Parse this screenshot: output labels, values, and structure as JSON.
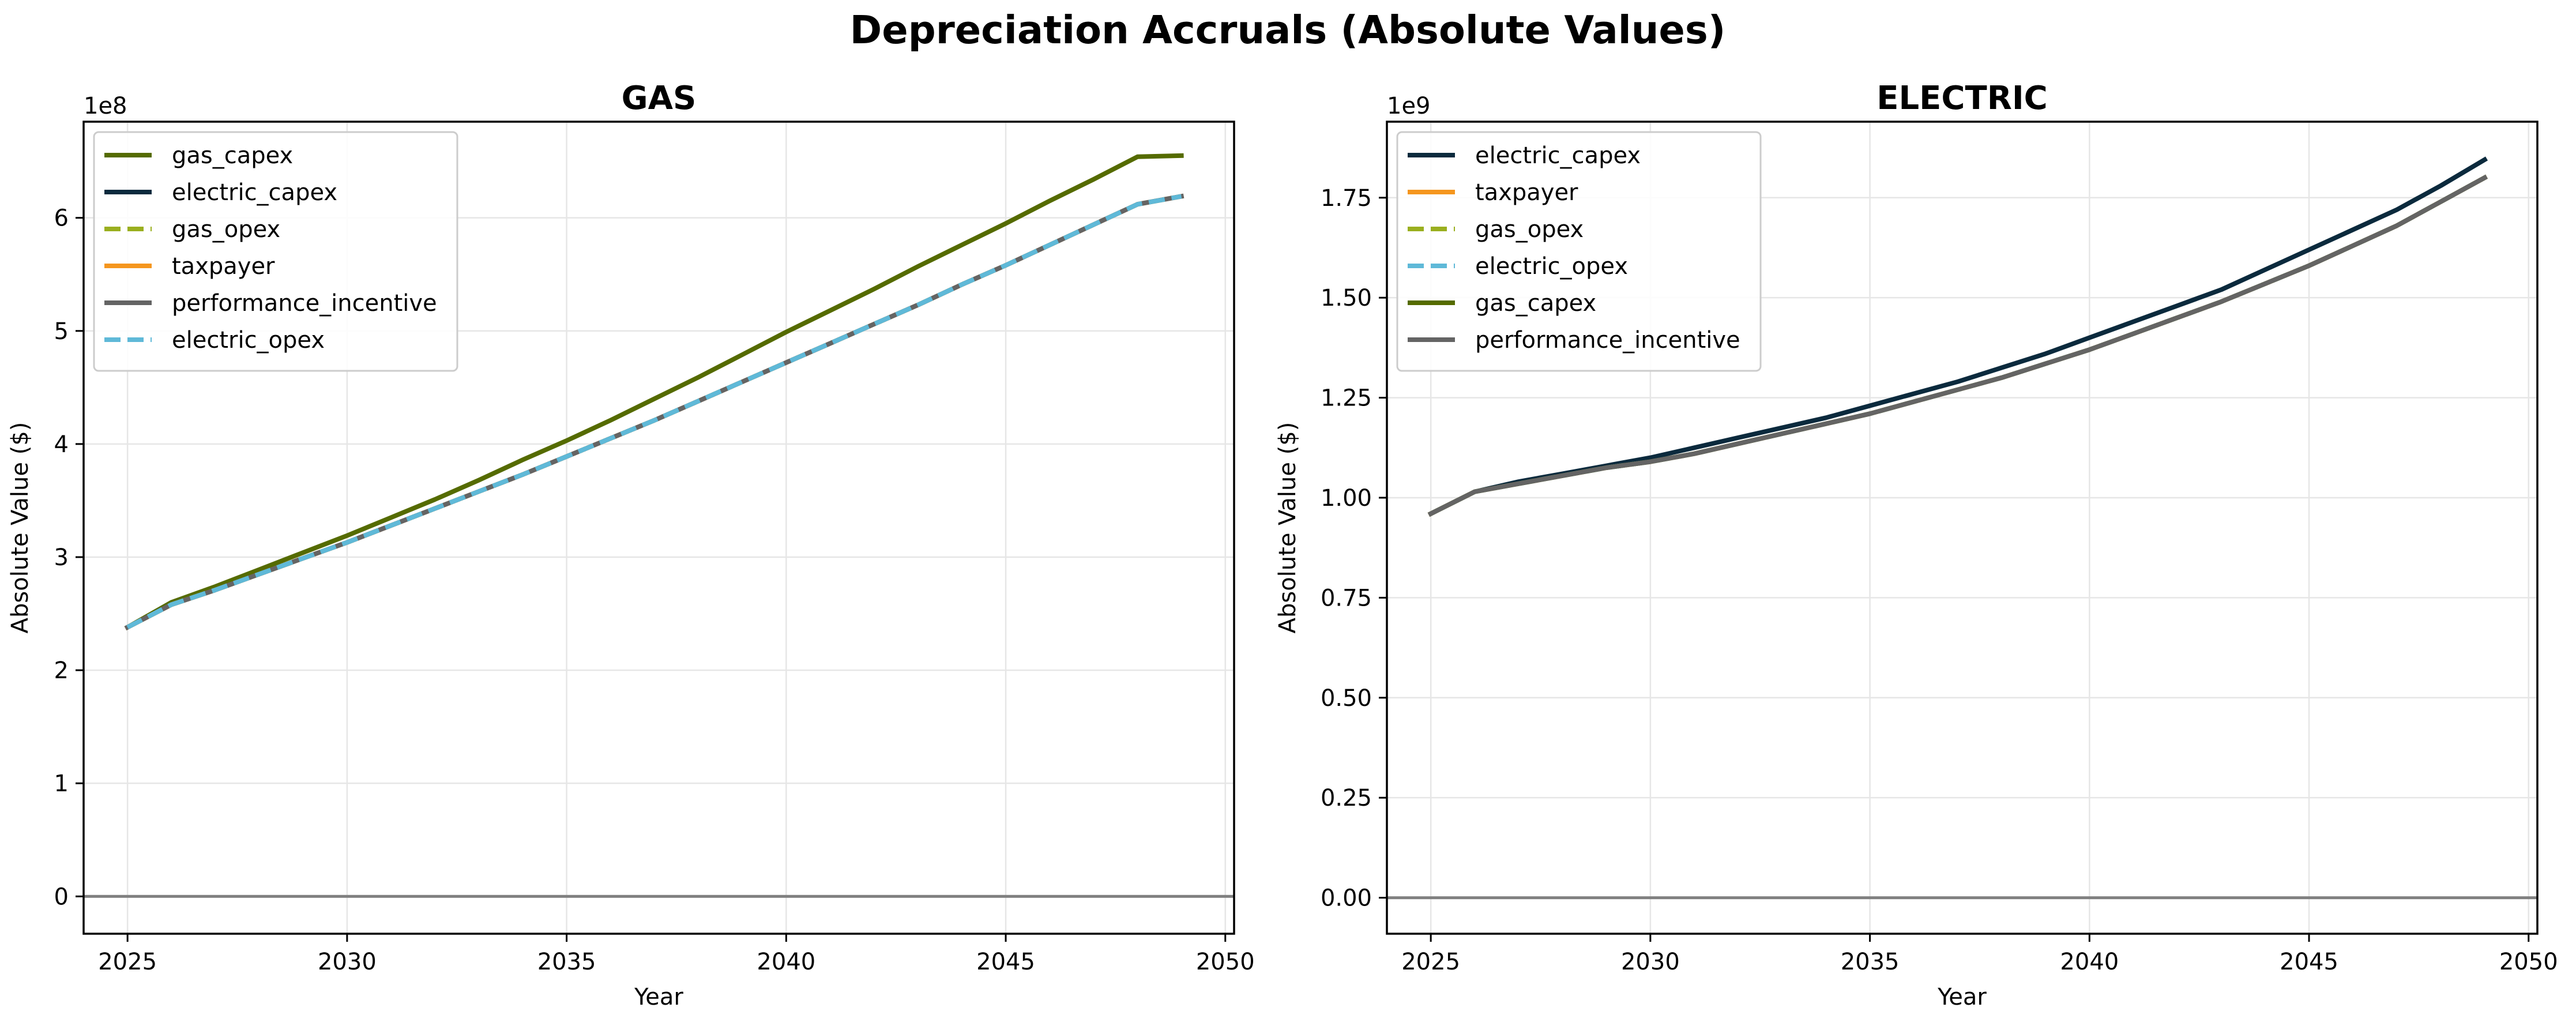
{
  "figure": {
    "title": "Depreciation Accruals (Absolute Values)"
  },
  "colors": {
    "gas_capex": "#556b00",
    "electric_capex": "#0b2a3d",
    "gas_opex": "#9aaf1f",
    "taxpayer": "#f5961e",
    "performance_incentive": "#646464",
    "electric_opex": "#5fb9d8",
    "zero_line": "#808080",
    "grid": "#e6e6e6"
  },
  "chart_data": [
    {
      "type": "line",
      "title": "GAS",
      "xlabel": "Year",
      "ylabel": "Absolute Value ($)",
      "y_multiplier_label": "1e8",
      "y_scale": 100000000,
      "xlim": [
        2024.0,
        2050.2
      ],
      "ylim": [
        -0.33,
        6.85
      ],
      "xticks": [
        2025,
        2030,
        2035,
        2040,
        2045,
        2050
      ],
      "xtick_labels": [
        "2025",
        "2030",
        "2035",
        "2040",
        "2045",
        "2050"
      ],
      "yticks": [
        0,
        1,
        2,
        3,
        4,
        5,
        6
      ],
      "ytick_labels": [
        "0",
        "1",
        "2",
        "3",
        "4",
        "5",
        "6"
      ],
      "grid": true,
      "zero_line": true,
      "legend_position": "upper-left",
      "x": [
        2025,
        2026,
        2027,
        2028,
        2029,
        2030,
        2031,
        2032,
        2033,
        2034,
        2035,
        2036,
        2037,
        2038,
        2039,
        2040,
        2041,
        2042,
        2043,
        2044,
        2045,
        2046,
        2047,
        2048,
        2049
      ],
      "series": [
        {
          "name": "gas_capex",
          "key": "gas_capex",
          "dashed": false,
          "values": [
            2.38,
            2.6,
            2.74,
            2.89,
            3.04,
            3.19,
            3.35,
            3.51,
            3.68,
            3.86,
            4.03,
            4.21,
            4.4,
            4.59,
            4.79,
            4.99,
            5.18,
            5.37,
            5.57,
            5.76,
            5.95,
            6.15,
            6.34,
            6.54,
            6.55
          ]
        },
        {
          "name": "electric_capex",
          "key": "electric_capex",
          "dashed": false,
          "values": [
            2.38,
            2.58,
            2.71,
            2.85,
            2.99,
            3.13,
            3.28,
            3.43,
            3.58,
            3.73,
            3.89,
            4.05,
            4.21,
            4.38,
            4.55,
            4.72,
            4.89,
            5.06,
            5.23,
            5.41,
            5.58,
            5.76,
            5.94,
            6.12,
            6.19
          ]
        },
        {
          "name": "gas_opex",
          "key": "gas_opex",
          "dashed": true,
          "values": [
            2.38,
            2.58,
            2.71,
            2.85,
            2.99,
            3.13,
            3.28,
            3.43,
            3.58,
            3.73,
            3.89,
            4.05,
            4.21,
            4.38,
            4.55,
            4.72,
            4.89,
            5.06,
            5.23,
            5.41,
            5.58,
            5.76,
            5.94,
            6.12,
            6.19
          ]
        },
        {
          "name": "taxpayer",
          "key": "taxpayer",
          "dashed": false,
          "values": [
            2.38,
            2.58,
            2.71,
            2.85,
            2.99,
            3.13,
            3.28,
            3.43,
            3.58,
            3.73,
            3.89,
            4.05,
            4.21,
            4.38,
            4.55,
            4.72,
            4.89,
            5.06,
            5.23,
            5.41,
            5.58,
            5.76,
            5.94,
            6.12,
            6.19
          ]
        },
        {
          "name": "performance_incentive",
          "key": "performance_incentive",
          "dashed": false,
          "values": [
            2.38,
            2.58,
            2.71,
            2.85,
            2.99,
            3.13,
            3.28,
            3.43,
            3.58,
            3.73,
            3.89,
            4.05,
            4.21,
            4.38,
            4.55,
            4.72,
            4.89,
            5.06,
            5.23,
            5.41,
            5.58,
            5.76,
            5.94,
            6.12,
            6.19
          ]
        },
        {
          "name": "electric_opex",
          "key": "electric_opex",
          "dashed": true,
          "values": [
            2.38,
            2.58,
            2.71,
            2.85,
            2.99,
            3.13,
            3.28,
            3.43,
            3.58,
            3.73,
            3.89,
            4.05,
            4.21,
            4.38,
            4.55,
            4.72,
            4.89,
            5.06,
            5.23,
            5.41,
            5.58,
            5.76,
            5.94,
            6.12,
            6.19
          ]
        }
      ]
    },
    {
      "type": "line",
      "title": "ELECTRIC",
      "xlabel": "Year",
      "ylabel": "Absolute Value ($)",
      "y_multiplier_label": "1e9",
      "y_scale": 1000000000,
      "xlim": [
        2024.0,
        2050.2
      ],
      "ylim": [
        -0.09,
        1.94
      ],
      "xticks": [
        2025,
        2030,
        2035,
        2040,
        2045,
        2050
      ],
      "xtick_labels": [
        "2025",
        "2030",
        "2035",
        "2040",
        "2045",
        "2050"
      ],
      "yticks": [
        0,
        0.25,
        0.5,
        0.75,
        1.0,
        1.25,
        1.5,
        1.75
      ],
      "ytick_labels": [
        "0.00",
        "0.25",
        "0.50",
        "0.75",
        "1.00",
        "1.25",
        "1.50",
        "1.75"
      ],
      "grid": true,
      "zero_line": true,
      "legend_position": "upper-left",
      "x": [
        2025,
        2026,
        2027,
        2028,
        2029,
        2030,
        2031,
        2032,
        2033,
        2034,
        2035,
        2036,
        2037,
        2038,
        2039,
        2040,
        2041,
        2042,
        2043,
        2044,
        2045,
        2046,
        2047,
        2048,
        2049
      ],
      "series": [
        {
          "name": "electric_capex",
          "key": "electric_capex",
          "dashed": false,
          "values": [
            0.96,
            1.015,
            1.04,
            1.06,
            1.08,
            1.1,
            1.125,
            1.15,
            1.175,
            1.2,
            1.23,
            1.26,
            1.29,
            1.325,
            1.36,
            1.4,
            1.44,
            1.48,
            1.52,
            1.57,
            1.62,
            1.67,
            1.72,
            1.78,
            1.845
          ]
        },
        {
          "name": "taxpayer",
          "key": "taxpayer",
          "dashed": false,
          "values": [
            0.96,
            1.015,
            1.035,
            1.055,
            1.075,
            1.09,
            1.11,
            1.135,
            1.16,
            1.185,
            1.21,
            1.24,
            1.27,
            1.3,
            1.335,
            1.37,
            1.41,
            1.45,
            1.49,
            1.535,
            1.58,
            1.63,
            1.68,
            1.74,
            1.8
          ]
        },
        {
          "name": "gas_opex",
          "key": "gas_opex",
          "dashed": true,
          "values": [
            0.96,
            1.015,
            1.035,
            1.055,
            1.075,
            1.09,
            1.11,
            1.135,
            1.16,
            1.185,
            1.21,
            1.24,
            1.27,
            1.3,
            1.335,
            1.37,
            1.41,
            1.45,
            1.49,
            1.535,
            1.58,
            1.63,
            1.68,
            1.74,
            1.8
          ]
        },
        {
          "name": "electric_opex",
          "key": "electric_opex",
          "dashed": true,
          "values": [
            0.96,
            1.015,
            1.035,
            1.055,
            1.075,
            1.09,
            1.11,
            1.135,
            1.16,
            1.185,
            1.21,
            1.24,
            1.27,
            1.3,
            1.335,
            1.37,
            1.41,
            1.45,
            1.49,
            1.535,
            1.58,
            1.63,
            1.68,
            1.74,
            1.8
          ]
        },
        {
          "name": "gas_capex",
          "key": "gas_capex",
          "dashed": false,
          "values": [
            0.96,
            1.015,
            1.035,
            1.055,
            1.075,
            1.09,
            1.11,
            1.135,
            1.16,
            1.185,
            1.21,
            1.24,
            1.27,
            1.3,
            1.335,
            1.37,
            1.41,
            1.45,
            1.49,
            1.535,
            1.58,
            1.63,
            1.68,
            1.74,
            1.8
          ]
        },
        {
          "name": "performance_incentive",
          "key": "performance_incentive",
          "dashed": false,
          "values": [
            0.96,
            1.015,
            1.035,
            1.055,
            1.075,
            1.09,
            1.11,
            1.135,
            1.16,
            1.185,
            1.21,
            1.24,
            1.27,
            1.3,
            1.335,
            1.37,
            1.41,
            1.45,
            1.49,
            1.535,
            1.58,
            1.63,
            1.68,
            1.74,
            1.8
          ]
        }
      ]
    }
  ]
}
